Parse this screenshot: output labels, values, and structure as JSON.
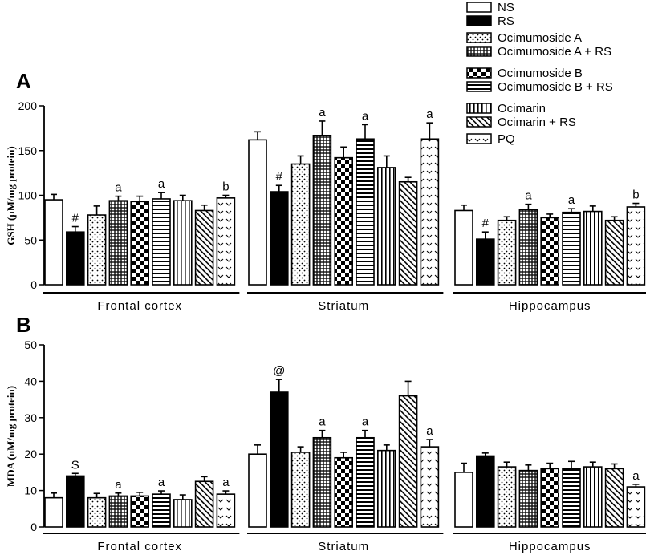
{
  "legend": [
    {
      "label": "NS",
      "pattern": "white"
    },
    {
      "label": "RS",
      "pattern": "black"
    },
    {
      "label": "Ocimumoside A",
      "pattern": "dots"
    },
    {
      "label": "Ocimumoside A + RS",
      "pattern": "dense"
    },
    {
      "label": "Ocimumoside B",
      "pattern": "checker"
    },
    {
      "label": "Ocimumoside B + RS",
      "pattern": "hlines"
    },
    {
      "label": "Ocimarin",
      "pattern": "vlines"
    },
    {
      "label": "Ocimarin + RS",
      "pattern": "diag"
    },
    {
      "label": "PQ",
      "pattern": "chevron"
    }
  ],
  "chart_data": [
    {
      "type": "bar",
      "panel_label": "A",
      "ylabel": "GSH (µM/mg protein)",
      "ylim": [
        0,
        200
      ],
      "yticks": [
        0,
        50,
        100,
        150,
        200
      ],
      "groups": [
        {
          "name": "Frontal cortex",
          "values": [
            95,
            59,
            78,
            94,
            93,
            96,
            94,
            83,
            97
          ],
          "errors": [
            6,
            6,
            10,
            5,
            6,
            7,
            6,
            6,
            3
          ],
          "annotations": [
            "",
            "#",
            "",
            "a",
            "",
            "a",
            "",
            "",
            "b"
          ]
        },
        {
          "name": "Striatum",
          "values": [
            162,
            104,
            135,
            167,
            142,
            163,
            131,
            115,
            163
          ],
          "errors": [
            9,
            7,
            9,
            16,
            12,
            16,
            13,
            5,
            18
          ],
          "annotations": [
            "",
            "#",
            "",
            "a",
            "",
            "a",
            "",
            "",
            "a"
          ]
        },
        {
          "name": "Hippocampus",
          "values": [
            83,
            51,
            72,
            84,
            75,
            81,
            82,
            72,
            87
          ],
          "errors": [
            6,
            8,
            4,
            6,
            4,
            4,
            6,
            4,
            4
          ],
          "annotations": [
            "",
            "#",
            "",
            "a",
            "",
            "a",
            "",
            "",
            "b"
          ]
        }
      ]
    },
    {
      "type": "bar",
      "panel_label": "B",
      "ylabel": "MDA (nM/mg protein)",
      "ylim": [
        0,
        50
      ],
      "yticks": [
        0,
        10,
        20,
        30,
        40,
        50
      ],
      "groups": [
        {
          "name": "Frontal cortex",
          "values": [
            8,
            14,
            8,
            8.5,
            8.5,
            9,
            7.5,
            12.5,
            9
          ],
          "errors": [
            1.3,
            0.7,
            1.2,
            0.8,
            1.0,
            0.9,
            1.3,
            1.3,
            0.9
          ],
          "annotations": [
            "",
            "S",
            "",
            "a",
            "",
            "a",
            "",
            "",
            "a"
          ]
        },
        {
          "name": "Striatum",
          "values": [
            20,
            37,
            20.5,
            24.5,
            19,
            24.5,
            21,
            36,
            22
          ],
          "errors": [
            2.5,
            3.5,
            1.5,
            2.0,
            1.5,
            2.0,
            1.5,
            4.0,
            2.0
          ],
          "annotations": [
            "",
            "@",
            "",
            "a",
            "",
            "a",
            "",
            "",
            "a"
          ]
        },
        {
          "name": "Hippocampus",
          "values": [
            15,
            19.5,
            16.5,
            15.5,
            16,
            16,
            16.5,
            16,
            11
          ],
          "errors": [
            2.5,
            0.8,
            1.3,
            1.5,
            1.5,
            2.0,
            1.3,
            1.3,
            0.7
          ],
          "annotations": [
            "",
            "",
            "",
            "",
            "",
            "",
            "",
            "",
            "a"
          ]
        }
      ]
    }
  ]
}
